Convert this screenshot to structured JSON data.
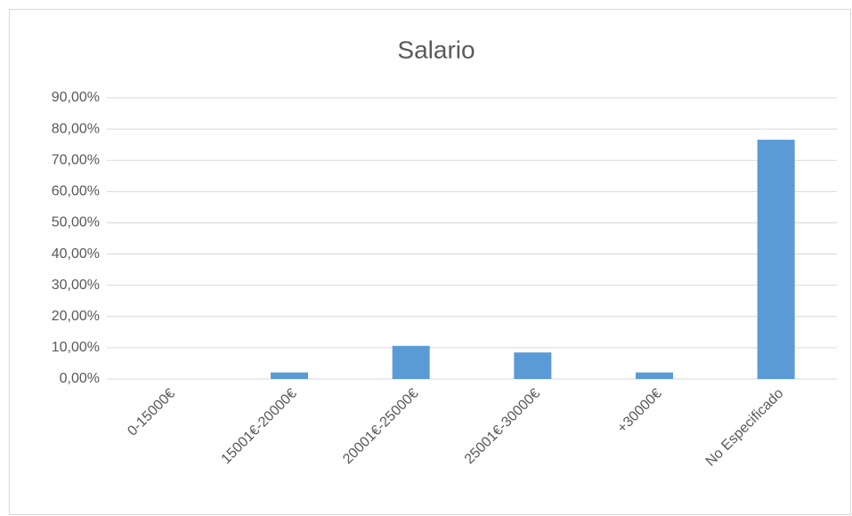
{
  "chart_data": {
    "type": "bar",
    "title": "Salario",
    "categories": [
      "0-15000€",
      "15001€-20000€",
      "20001€-25000€",
      "25001€-30000€",
      "+30000€",
      "No Especificado"
    ],
    "values": [
      0,
      2.1,
      10.6,
      8.5,
      2.1,
      76.6
    ],
    "color": "#5b9bd5",
    "ylim": [
      0,
      90
    ],
    "yticks": [
      {
        "value": 0,
        "label": "0,00%"
      },
      {
        "value": 10,
        "label": "10,00%"
      },
      {
        "value": 20,
        "label": "20,00%"
      },
      {
        "value": 30,
        "label": "30,00%"
      },
      {
        "value": 40,
        "label": "40,00%"
      },
      {
        "value": 50,
        "label": "50,00%"
      },
      {
        "value": 60,
        "label": "60,00%"
      },
      {
        "value": 70,
        "label": "70,00%"
      },
      {
        "value": 80,
        "label": "80,00%"
      },
      {
        "value": 90,
        "label": "90,00%"
      }
    ],
    "grid": true
  }
}
